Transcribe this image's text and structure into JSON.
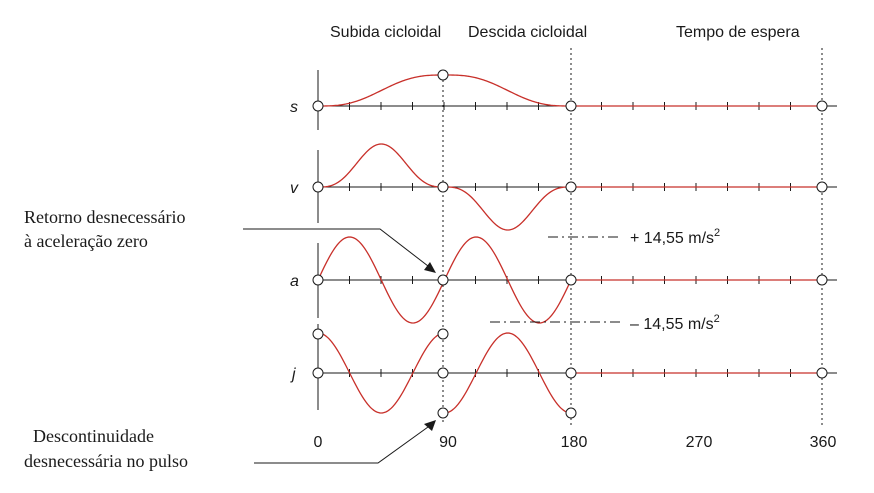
{
  "headers": {
    "rise": "Subida cicloidal",
    "fall": "Descida cicloidal",
    "dwell": "Tempo de espera"
  },
  "axes": {
    "s": "s",
    "v": "v",
    "a": "a",
    "j": "j"
  },
  "x_ticks": [
    "0",
    "90",
    "180",
    "270",
    "360"
  ],
  "annotations": {
    "a_max": "+ 14,55  m/s",
    "a_min": "– 14,55  m/s",
    "a_unit_sup": "2",
    "note_return_line1": "Retorno desnecessário",
    "note_return_line2": "à aceleração zero",
    "note_disc_line1": "Descontinuidade",
    "note_disc_line2": "desnecessária no pulso"
  },
  "colors": {
    "curve": "#c8302a",
    "axis": "#1a1a1a"
  },
  "chart_data": {
    "type": "line",
    "x_unit": "degrees",
    "x_range": [
      0,
      360
    ],
    "segments": [
      {
        "name": "Subida cicloidal",
        "from": 0,
        "to": 90
      },
      {
        "name": "Descida cicloidal",
        "from": 90,
        "to": 180
      },
      {
        "name": "Tempo de espera",
        "from": 180,
        "to": 360
      }
    ],
    "acceleration_peak": 14.55,
    "acceleration_unit": "m/s^2",
    "series": [
      {
        "name": "s"
      },
      {
        "name": "v"
      },
      {
        "name": "a"
      },
      {
        "name": "j"
      }
    ]
  }
}
